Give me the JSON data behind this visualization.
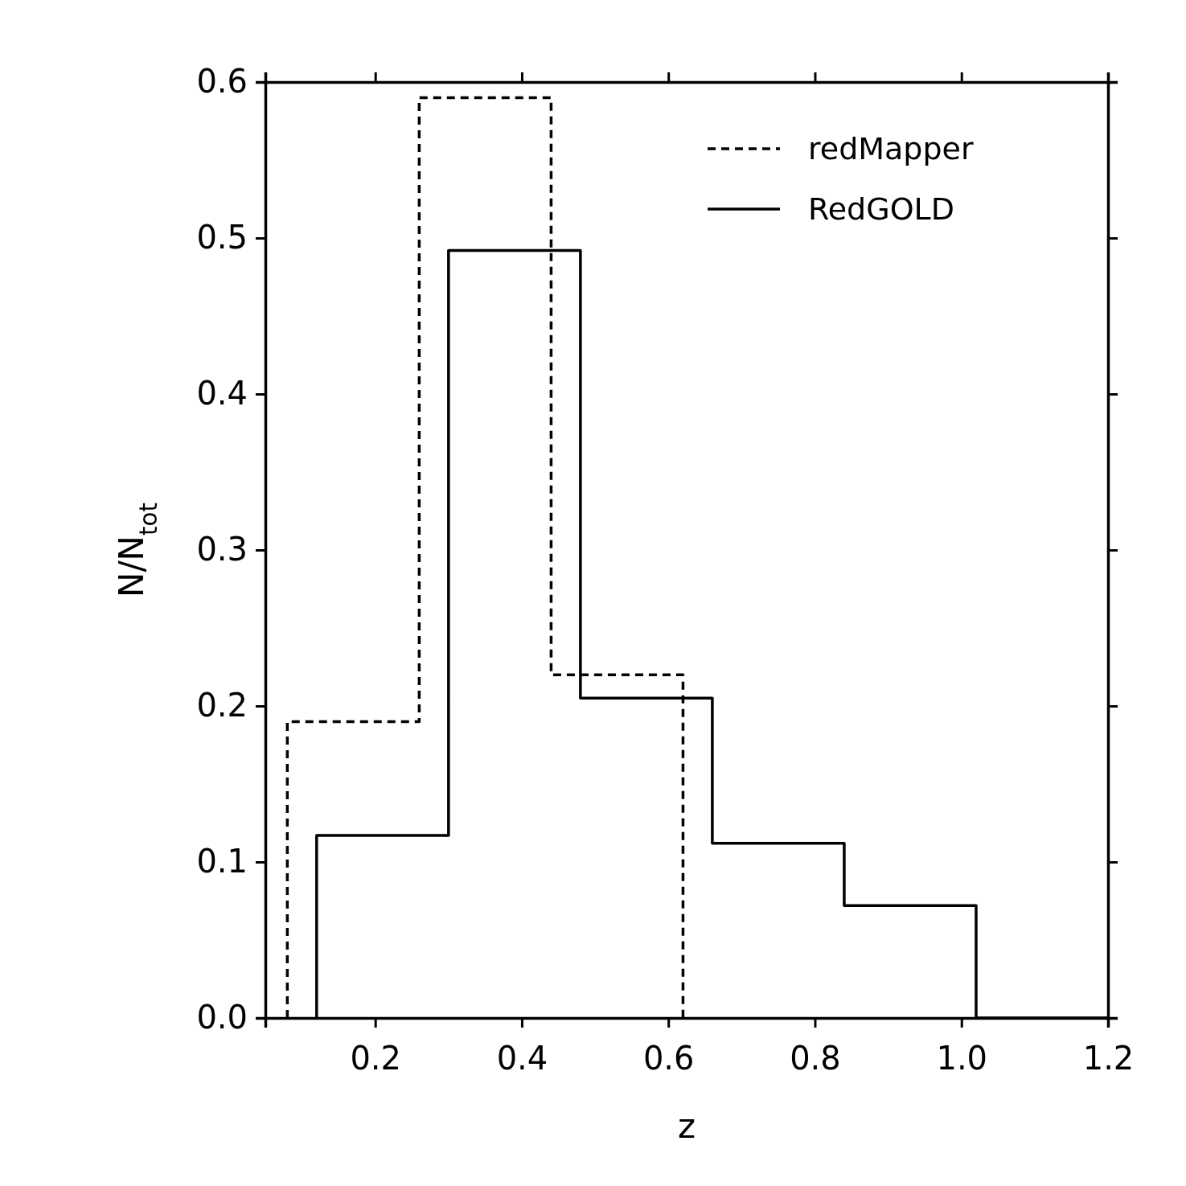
{
  "chart_data": {
    "type": "line",
    "xlabel": "z",
    "ylabel": "N/N$_{tot}$",
    "xlim": [
      0.05,
      1.2
    ],
    "xticks": [
      0.2,
      0.4,
      0.6,
      0.8,
      {
        "value": 1.0,
        "label": "1.0"
      },
      1.2
    ],
    "ylim": [
      0,
      0.6
    ],
    "yticks": [
      {
        "value": 0,
        "label": "0.0"
      },
      0.1,
      0.2,
      0.3,
      0.4,
      0.5,
      0.6
    ],
    "legend": "top right",
    "series": [
      {
        "name": "redMapper",
        "color": "#000000",
        "line_style": "dashed",
        "x": [
          0.08,
          0.08,
          0.26,
          0.26,
          0.44,
          0.44,
          0.62,
          0.62
        ],
        "values": [
          0,
          0.19,
          0.19,
          0.59,
          0.59,
          0.22,
          0.22,
          0
        ]
      },
      {
        "name": "RedGOLD",
        "color": "#000000",
        "line_style": "solid",
        "x": [
          0.12,
          0.12,
          0.3,
          0.3,
          0.48,
          0.48,
          0.66,
          0.66,
          0.84,
          0.84,
          1.02,
          1.02,
          1.2
        ],
        "values": [
          0,
          0.117,
          0.117,
          0.492,
          0.492,
          0.205,
          0.205,
          0.112,
          0.112,
          0.072,
          0.072,
          0,
          0
        ]
      }
    ]
  }
}
